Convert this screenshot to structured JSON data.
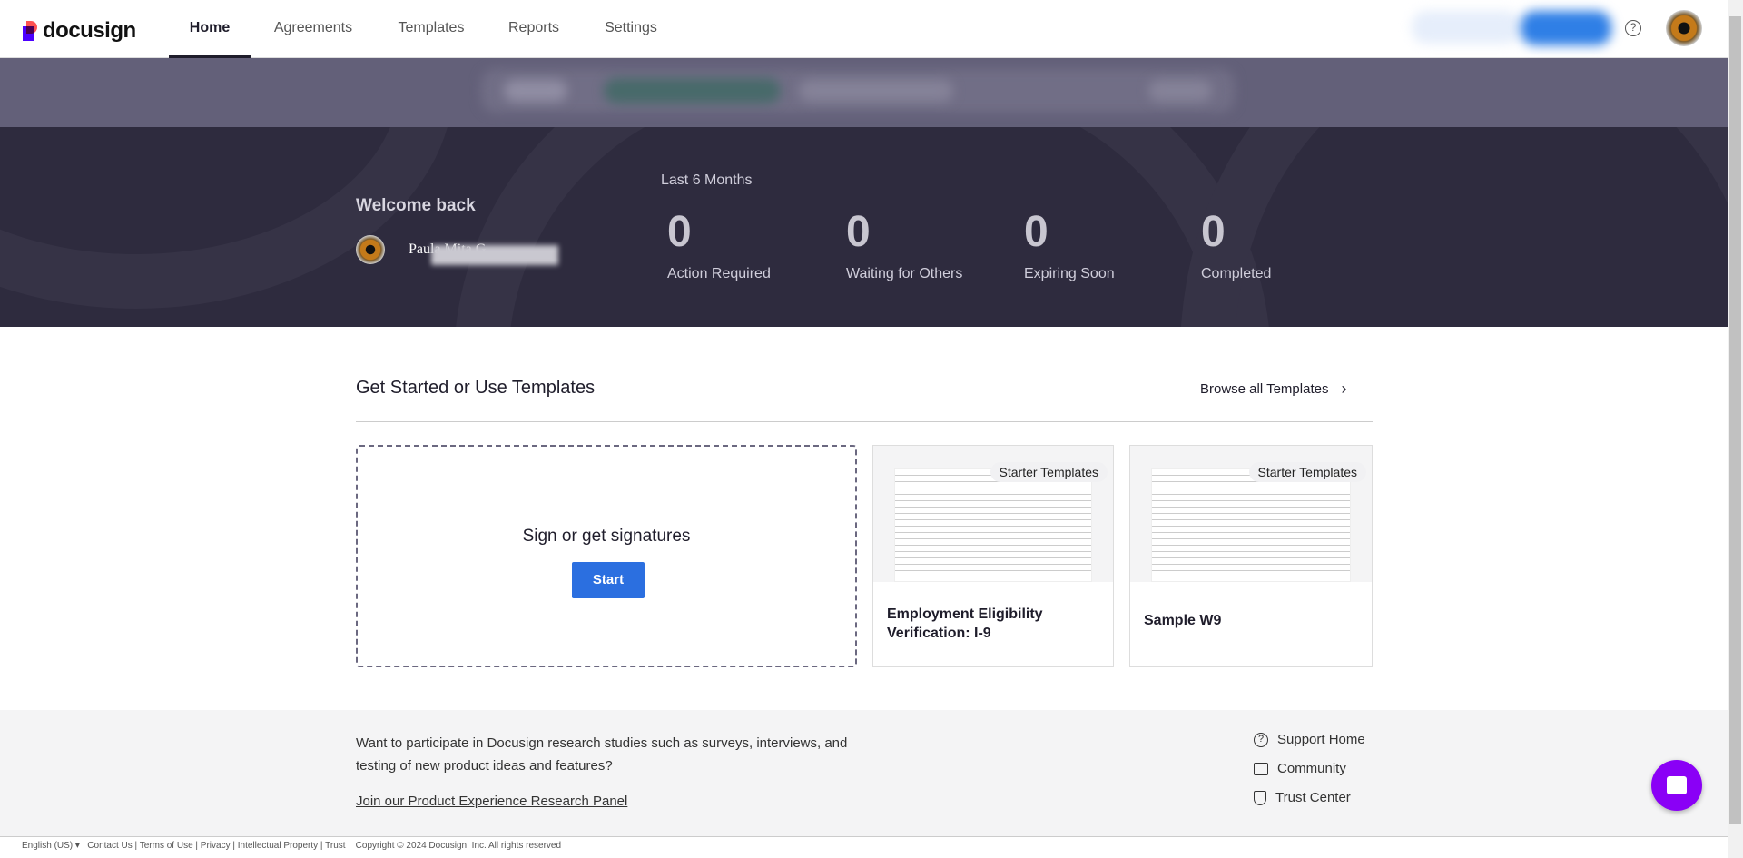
{
  "nav": {
    "brand": "docusign",
    "tabs": [
      "Home",
      "Agreements",
      "Templates",
      "Reports",
      "Settings"
    ],
    "active": "Home"
  },
  "hero": {
    "welcome": "Welcome back",
    "user_name": "Paula Mita G",
    "period": "Last 6 Months",
    "stats": [
      {
        "value": "0",
        "label": "Action Required"
      },
      {
        "value": "0",
        "label": "Waiting for Others"
      },
      {
        "value": "0",
        "label": "Expiring Soon"
      },
      {
        "value": "0",
        "label": "Completed"
      }
    ]
  },
  "main": {
    "heading": "Get Started or Use Templates",
    "browse": "Browse all Templates",
    "start_card": {
      "title": "Sign or get signatures",
      "button": "Start"
    },
    "templates": [
      {
        "badge": "Starter Templates",
        "title": "Employment Eligibility Verification: I-9"
      },
      {
        "badge": "Starter Templates",
        "title": "Sample W9"
      }
    ]
  },
  "footer": {
    "research_text": "Want to participate in Docusign research studies such as surveys, interviews, and testing of new product ideas and features?",
    "research_link": "Join our Product Experience Research Panel",
    "links": [
      {
        "icon": "help-circle-icon",
        "label": "Support Home"
      },
      {
        "icon": "community-icon",
        "label": "Community"
      },
      {
        "icon": "shield-icon",
        "label": "Trust Center"
      }
    ],
    "bottom": [
      "English (US) ▾",
      "Contact Us",
      "Terms of Use",
      "Privacy",
      "Intellectual Property",
      "Trust",
      "Copyright © 2024 Docusign, Inc. All rights reserved"
    ]
  },
  "colors": {
    "accent": "#2b6fe0",
    "chat": "#8a00f6",
    "hero": "#2e2b3e",
    "band": "#636079"
  }
}
